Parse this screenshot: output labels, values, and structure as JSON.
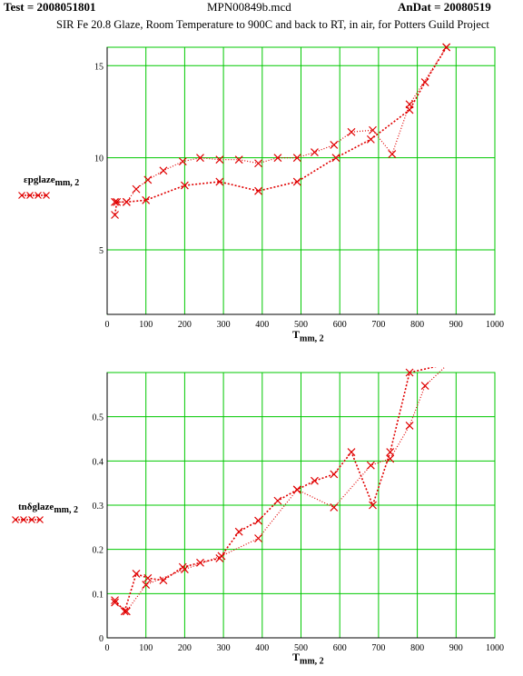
{
  "header": {
    "test_label": "Test = 2008051801",
    "file_name": "MPN00849b.mcd",
    "andat_label": "AnDat = 20080519",
    "subtitle": "SIR  Fe 20.8 Glaze, Room Temperature to 900C and back to RT, in  air, for Potters Guild Project"
  },
  "colors": {
    "grid": "#00c800",
    "series": "#e00000",
    "axis": "#000000"
  },
  "chart_data": [
    {
      "type": "line",
      "ylabel_main": "εpglaze",
      "ylabel_sub": "mm, 2",
      "xlabel_main": "T",
      "xlabel_sub": "mm, 2",
      "xlim": [
        0,
        1000
      ],
      "ylim": [
        1.5,
        16
      ],
      "xticks": [
        0,
        100,
        200,
        300,
        400,
        500,
        600,
        700,
        800,
        900,
        1000
      ],
      "yticks": [
        5,
        10,
        15
      ],
      "grid": true,
      "legend_marker": "x",
      "series": [
        {
          "points": [
            [
              20,
              6.9
            ],
            [
              25,
              7.6
            ],
            [
              50,
              7.6
            ],
            [
              100,
              7.7
            ],
            [
              200,
              8.5
            ],
            [
              290,
              8.7
            ],
            [
              390,
              8.2
            ],
            [
              490,
              8.7
            ],
            [
              590,
              10.0
            ],
            [
              680,
              11.0
            ],
            [
              780,
              12.6
            ],
            [
              820,
              14.1
            ],
            [
              875,
              16.0
            ]
          ]
        },
        {
          "points": [
            [
              20,
              7.6
            ],
            [
              50,
              7.6
            ],
            [
              75,
              8.3
            ],
            [
              105,
              8.8
            ],
            [
              145,
              9.3
            ],
            [
              195,
              9.8
            ],
            [
              240,
              10.0
            ],
            [
              290,
              9.9
            ],
            [
              340,
              9.9
            ],
            [
              390,
              9.7
            ],
            [
              440,
              10.0
            ],
            [
              490,
              10.0
            ],
            [
              535,
              10.3
            ],
            [
              585,
              10.7
            ],
            [
              630,
              11.4
            ],
            [
              685,
              11.5
            ],
            [
              735,
              10.2
            ],
            [
              780,
              12.9
            ],
            [
              875,
              16.0
            ]
          ]
        }
      ]
    },
    {
      "type": "line",
      "ylabel_main": "tnδglaze",
      "ylabel_sub": "mm, 2",
      "xlabel_main": "T",
      "xlabel_sub": "mm, 2",
      "xlim": [
        0,
        1000
      ],
      "ylim": [
        0,
        0.6
      ],
      "xticks": [
        0,
        100,
        200,
        300,
        400,
        500,
        600,
        700,
        800,
        900,
        1000
      ],
      "yticks": [
        0,
        0.1,
        0.2,
        0.3,
        0.4,
        0.5
      ],
      "grid": true,
      "legend_marker": "x",
      "series": [
        {
          "points": [
            [
              20,
              0.085
            ],
            [
              45,
              0.06
            ],
            [
              75,
              0.145
            ],
            [
              105,
              0.135
            ],
            [
              145,
              0.13
            ],
            [
              195,
              0.16
            ],
            [
              240,
              0.17
            ],
            [
              290,
              0.18
            ],
            [
              340,
              0.24
            ],
            [
              390,
              0.265
            ],
            [
              440,
              0.31
            ],
            [
              490,
              0.335
            ],
            [
              535,
              0.355
            ],
            [
              585,
              0.37
            ],
            [
              630,
              0.42
            ],
            [
              685,
              0.3
            ],
            [
              730,
              0.42
            ],
            [
              780,
              0.6
            ],
            [
              880,
              0.62
            ]
          ]
        },
        {
          "points": [
            [
              20,
              0.08
            ],
            [
              50,
              0.06
            ],
            [
              100,
              0.12
            ],
            [
              200,
              0.155
            ],
            [
              295,
              0.185
            ],
            [
              390,
              0.225
            ],
            [
              490,
              0.335
            ],
            [
              585,
              0.295
            ],
            [
              680,
              0.39
            ],
            [
              730,
              0.405
            ],
            [
              780,
              0.48
            ],
            [
              820,
              0.57
            ],
            [
              880,
              0.62
            ]
          ]
        }
      ]
    }
  ]
}
